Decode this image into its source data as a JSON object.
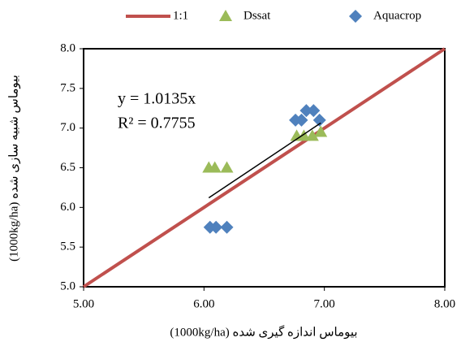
{
  "chart_data": {
    "type": "scatter",
    "xlabel": "بیوماس اندازه گیری شده (1000kg/ha)",
    "ylabel": "بیوماس شبیه سازی شده (1000kg/ha)",
    "xlim": [
      5,
      8
    ],
    "ylim": [
      5,
      8
    ],
    "xticks": [
      {
        "value": 5,
        "label": "5.00"
      },
      {
        "value": 6,
        "label": "6.00"
      },
      {
        "value": 7,
        "label": "7.00"
      },
      {
        "value": 8,
        "label": "8.00"
      }
    ],
    "yticks": [
      {
        "value": 5,
        "label": "5.0"
      },
      5.5,
      {
        "value": 6,
        "label": "6.0"
      },
      6.5,
      {
        "value": 7,
        "label": "7.0"
      },
      7.5,
      {
        "value": 8,
        "label": "8.0"
      }
    ],
    "grid": false,
    "legend": "top",
    "series": [
      {
        "name": "1:1",
        "color": "#c0504d",
        "marker": "line",
        "x": [
          5,
          8
        ],
        "values": [
          5,
          8
        ]
      },
      {
        "name": "Dssat",
        "color": "#9bbb59",
        "marker": "triangle",
        "x": [
          6.04,
          6.09,
          6.19,
          6.77,
          6.83,
          6.9,
          6.97
        ],
        "values": [
          6.5,
          6.5,
          6.5,
          6.9,
          6.9,
          6.9,
          6.95
        ]
      },
      {
        "name": "Aquacrop",
        "color": "#4f81bd",
        "marker": "diamond",
        "x": [
          6.05,
          6.1,
          6.19,
          6.76,
          6.81,
          6.85,
          6.91,
          6.96
        ],
        "values": [
          5.75,
          5.75,
          5.75,
          7.1,
          7.1,
          7.22,
          7.22,
          7.1
        ]
      }
    ],
    "trendline": {
      "slope": 1.0135,
      "equation": "y = 1.0135x",
      "r2": "R² = 0.7755",
      "color": "#000000"
    }
  }
}
